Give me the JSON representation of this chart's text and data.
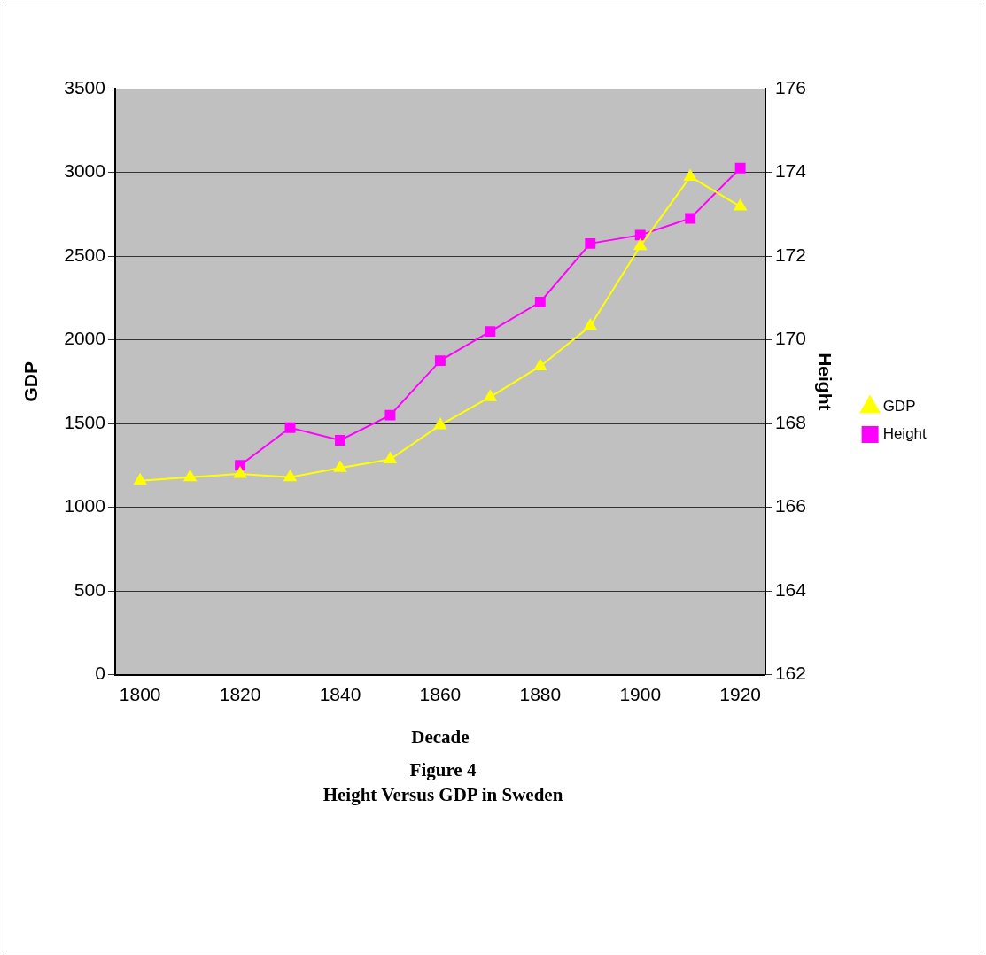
{
  "chart_data": {
    "type": "line",
    "title": "Figure 4",
    "subtitle": "Height Versus GDP in Sweden",
    "xlabel": "Decade",
    "ylabel": "GDP",
    "y2label": "Height",
    "categories": [
      "1800",
      null,
      "1820",
      null,
      "1840",
      null,
      "1860",
      null,
      "1880",
      null,
      "1900",
      null,
      "1920"
    ],
    "series": [
      {
        "name": "GDP",
        "color": "#ffff00",
        "marker": "triangle",
        "values": [
          1158,
          1179,
          1199,
          1179,
          1235,
          1286,
          1490,
          1658,
          1842,
          2082,
          2560,
          2974,
          2796
        ]
      },
      {
        "name": "Height",
        "color": "#ff00ff",
        "marker": "square",
        "axis": "y2",
        "values": [
          null,
          null,
          167.0,
          167.9,
          167.6,
          168.2,
          169.5,
          170.2,
          170.9,
          172.3,
          172.5,
          172.9,
          174.1
        ]
      }
    ],
    "ylim": [
      0,
      3500
    ],
    "yticks": [
      0,
      500,
      1000,
      1500,
      2000,
      2500,
      3000,
      3500
    ],
    "y2lim": [
      162,
      176
    ],
    "y2ticks": [
      162,
      164,
      166,
      168,
      170,
      172,
      174,
      176
    ],
    "grid": "y",
    "legend": "right"
  }
}
